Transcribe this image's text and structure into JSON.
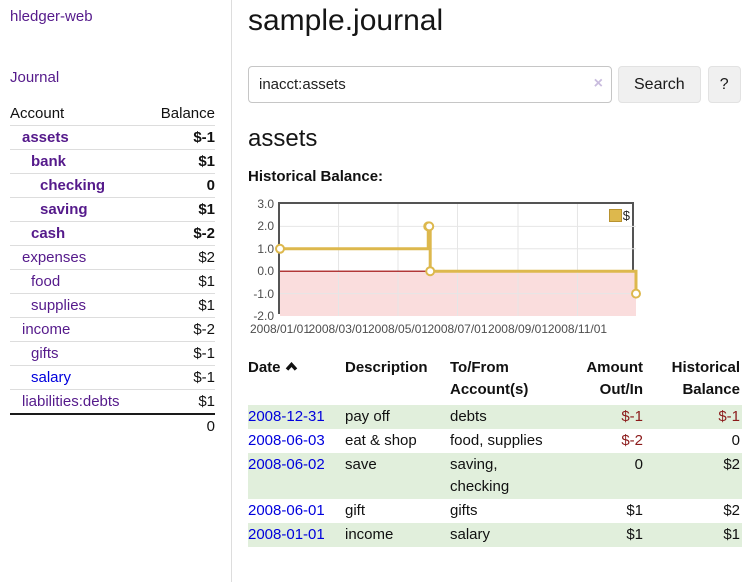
{
  "colors": {
    "link-purple": "#551a8b",
    "link-blue": "#0000dd",
    "neg-strong": "#8b1a1a",
    "neg-soft": "#bd6c6c",
    "stripe-green": "#e1efdc",
    "divider": "#dddddd"
  },
  "sidebar": {
    "app_title": "hledger-web",
    "nav_journal": "Journal",
    "accounts": {
      "header_account": "Account",
      "header_balance": "Balance",
      "rows": [
        {
          "name": "assets",
          "balance": "$-1"
        },
        {
          "name": "bank",
          "balance": "$1"
        },
        {
          "name": "checking",
          "balance": "0"
        },
        {
          "name": "saving",
          "balance": "$1"
        },
        {
          "name": "cash",
          "balance": "$-2"
        },
        {
          "name": "expenses",
          "balance": "$2"
        },
        {
          "name": "food",
          "balance": "$1"
        },
        {
          "name": "supplies",
          "balance": "$1"
        },
        {
          "name": "income",
          "balance": "$-2"
        },
        {
          "name": "gifts",
          "balance": "$-1"
        },
        {
          "name": "salary",
          "balance": "$-1"
        },
        {
          "name": "liabilities:debts",
          "balance": "$1"
        }
      ],
      "total": "0"
    }
  },
  "main": {
    "title": "sample.journal",
    "search": {
      "value": "inacct:assets",
      "clear_icon": "×",
      "search_button": "Search",
      "help_button": "?"
    },
    "account_heading": "assets",
    "chart_title": "Historical Balance:"
  },
  "chart_data": {
    "type": "line",
    "step": true,
    "title": "Historical Balance",
    "x_range": [
      "2008-01-01",
      "2008-12-31"
    ],
    "ylim": [
      -2,
      3
    ],
    "y_ticks": [
      "3.0",
      "2.0",
      "1.0",
      "0.0",
      "-1.0",
      "-2.0"
    ],
    "x_ticks": [
      "2008/01/01",
      "2008/03/01",
      "2008/05/01",
      "2008/07/01",
      "2008/09/01",
      "2008/11/01"
    ],
    "grid": true,
    "legend": {
      "position": "top-right",
      "label": "$"
    },
    "series": [
      {
        "name": "$",
        "color": "#ddb84d",
        "points": [
          {
            "date": "2008-01-01",
            "value": 1
          },
          {
            "date": "2008-06-01",
            "value": 2
          },
          {
            "date": "2008-06-02",
            "value": 2
          },
          {
            "date": "2008-06-03",
            "value": 0
          },
          {
            "date": "2008-12-31",
            "value": -1
          }
        ]
      }
    ],
    "colors": {
      "grid": "#e6e6e6",
      "border": "#545454",
      "negative_region": "#fadddd",
      "zero_line": "#990000",
      "legend_swatch_border": "#b8922f"
    }
  },
  "register": {
    "headers": {
      "date": "Date",
      "sort_icon": "chevron-up",
      "description": "Description",
      "account_line1": "To/From",
      "account_line2": "Account(s)",
      "amount_line1": "Amount",
      "amount_line2": "Out/In",
      "balance_line1": "Historical",
      "balance_line2": "Balance"
    },
    "rows": [
      {
        "date": "2008-12-31",
        "description": "pay off",
        "accounts": "debts",
        "amount": "$-1",
        "balance": "$-1"
      },
      {
        "date": "2008-06-03",
        "description": "eat & shop",
        "accounts": "food, supplies",
        "amount": "$-2",
        "balance": "0"
      },
      {
        "date": "2008-06-02",
        "description": "save",
        "accounts": "saving, checking",
        "amount": "0",
        "balance": "$2"
      },
      {
        "date": "2008-06-01",
        "description": "gift",
        "accounts": "gifts",
        "amount": "$1",
        "balance": "$2"
      },
      {
        "date": "2008-01-01",
        "description": "income",
        "accounts": "salary",
        "amount": "$1",
        "balance": "$1"
      }
    ]
  }
}
